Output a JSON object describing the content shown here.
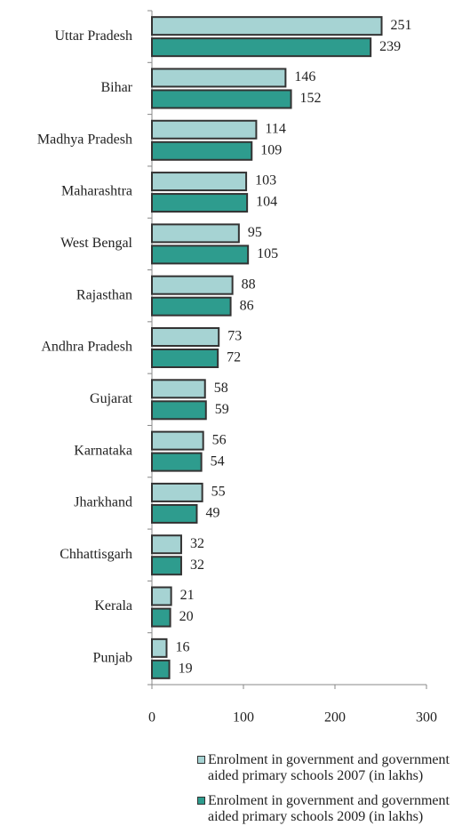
{
  "chart_data": {
    "type": "barh",
    "categories": [
      "Uttar Pradesh",
      "Bihar",
      "Madhya Pradesh",
      "Maharashtra",
      "West Bengal",
      "Rajasthan",
      "Andhra Pradesh",
      "Gujarat",
      "Karnataka",
      "Jharkhand",
      "Chhattisgarh",
      "Kerala",
      "Punjab"
    ],
    "series": [
      {
        "name": "Enrolment in government and government aided primary schools 2007 (in lakhs)",
        "color": "#a6d3d3",
        "values": [
          251,
          146,
          114,
          103,
          95,
          88,
          73,
          58,
          56,
          55,
          32,
          21,
          16
        ]
      },
      {
        "name": "Enrolment in government and government aided primary schools 2009 (in lakhs)",
        "color": "#2e9c8e",
        "values": [
          239,
          152,
          109,
          104,
          105,
          86,
          72,
          59,
          54,
          49,
          32,
          20,
          19
        ]
      }
    ],
    "xlim": [
      0,
      300
    ],
    "xticks": [
      0,
      100,
      200,
      300
    ],
    "legend": "bottom"
  }
}
